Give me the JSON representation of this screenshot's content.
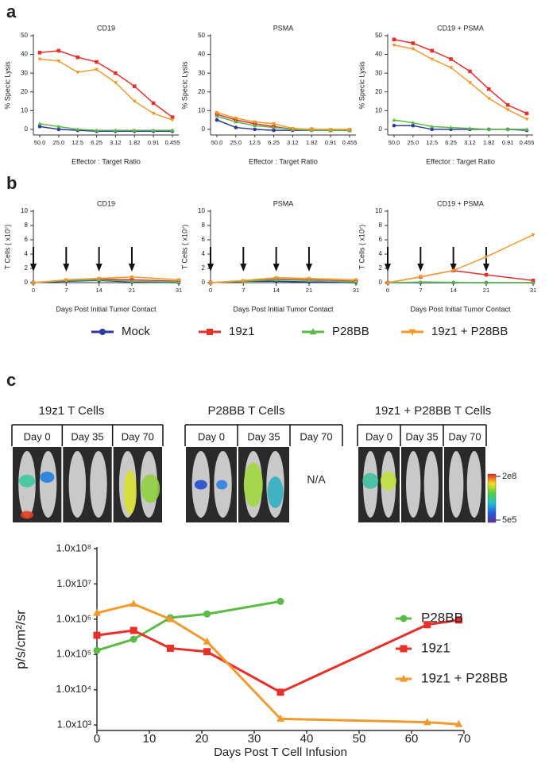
{
  "panel_labels": [
    "a",
    "b",
    "c"
  ],
  "chart_data": [
    {
      "type": "line",
      "title": "CD19",
      "ylabel": "% Specic Lysis",
      "xlabel": "Effector : Target Ratio",
      "categories": [
        "50.0",
        "25.0",
        "12.5",
        "6.25",
        "3.12",
        "1.82",
        "0.91",
        "0.455"
      ],
      "ylim": [
        -3,
        50
      ],
      "yticks": [
        0,
        10,
        20,
        30,
        40,
        50
      ],
      "series": [
        {
          "name": "Mock",
          "color": "#2e3a9e",
          "marker": "circle",
          "values": [
            1.5,
            0,
            -0.5,
            -1,
            -1,
            -1,
            -1,
            -1
          ]
        },
        {
          "name": "19z1",
          "color": "#e8302a",
          "marker": "square",
          "values": [
            41,
            42,
            38.5,
            36,
            30,
            23,
            14,
            6.5
          ]
        },
        {
          "name": "P28BB",
          "color": "#5cba47",
          "marker": "triangle",
          "values": [
            3,
            1.5,
            0,
            -0.5,
            -0.5,
            -0.5,
            -0.5,
            -0.5
          ]
        },
        {
          "name": "19z1 + P28BB",
          "color": "#f39a2e",
          "marker": "triangle-down",
          "values": [
            37.5,
            36.5,
            30.5,
            32,
            25,
            15,
            8.5,
            5
          ]
        }
      ]
    },
    {
      "type": "line",
      "title": "PSMA",
      "ylabel": "% Specic Lysis",
      "xlabel": "Effector : Target Ratio",
      "categories": [
        "50.0",
        "25.0",
        "12.5",
        "6.25",
        "3.12",
        "1.82",
        "0.91",
        "0.455"
      ],
      "ylim": [
        -3,
        50
      ],
      "yticks": [
        0,
        10,
        20,
        30,
        40,
        50
      ],
      "series": [
        {
          "name": "Mock",
          "color": "#2e3a9e",
          "marker": "circle",
          "values": [
            5,
            1,
            0,
            -0.5,
            -0.5,
            -0.5,
            -0.5,
            -0.5
          ]
        },
        {
          "name": "19z1",
          "color": "#e8302a",
          "marker": "square",
          "values": [
            8,
            5,
            3,
            1.5,
            0,
            0,
            -0.5,
            -0.5
          ]
        },
        {
          "name": "P28BB",
          "color": "#5cba47",
          "marker": "triangle",
          "values": [
            7,
            4,
            2,
            1,
            0,
            -0.5,
            -0.5,
            -0.5
          ]
        },
        {
          "name": "19z1 + P28BB",
          "color": "#f39a2e",
          "marker": "triangle-down",
          "values": [
            9,
            6,
            4,
            3,
            0.5,
            0,
            0,
            0
          ]
        }
      ]
    },
    {
      "type": "line",
      "title": "CD19 + PSMA",
      "ylabel": "% Specic Lysis",
      "xlabel": "Effector : Target Ratio",
      "categories": [
        "50.0",
        "25.0",
        "12.5",
        "6.25",
        "3.12",
        "1.82",
        "0.91",
        "0.455"
      ],
      "ylim": [
        -3,
        50
      ],
      "yticks": [
        0,
        10,
        20,
        30,
        40,
        50
      ],
      "series": [
        {
          "name": "Mock",
          "color": "#2e3a9e",
          "marker": "circle",
          "values": [
            2,
            2,
            0,
            0,
            0,
            0,
            0,
            -0.5
          ]
        },
        {
          "name": "19z1",
          "color": "#e8302a",
          "marker": "square",
          "values": [
            48,
            46,
            42,
            37.5,
            31,
            21.5,
            13,
            8.5
          ]
        },
        {
          "name": "P28BB",
          "color": "#5cba47",
          "marker": "triangle",
          "values": [
            5,
            3.5,
            1.5,
            1,
            0.5,
            0,
            0,
            0
          ]
        },
        {
          "name": "19z1 + P28BB",
          "color": "#f39a2e",
          "marker": "triangle-down",
          "values": [
            45,
            43,
            37.5,
            33,
            25,
            16.5,
            10.5,
            5.5
          ]
        }
      ]
    },
    {
      "type": "line",
      "title": "CD19",
      "ylabel": "T Cells ( x10⁷)",
      "xlabel": "Days Post Initial Tumor Contact",
      "x": [
        0,
        7,
        14,
        21,
        31
      ],
      "xlim": [
        0,
        31
      ],
      "xticks": [
        0,
        7,
        14,
        21,
        31
      ],
      "ylim": [
        0,
        10
      ],
      "yticks": [
        0,
        2,
        4,
        6,
        8,
        10
      ],
      "arrow_days": [
        0,
        7,
        14,
        21
      ],
      "series": [
        {
          "name": "Mock",
          "color": "#2e3a9e",
          "marker": "circle",
          "values": [
            0,
            0.2,
            0.3,
            0.1,
            0
          ]
        },
        {
          "name": "19z1",
          "color": "#e8302a",
          "marker": "square",
          "values": [
            0,
            0.3,
            0.5,
            0.4,
            0.2
          ]
        },
        {
          "name": "P28BB",
          "color": "#5cba47",
          "marker": "triangle",
          "values": [
            0,
            0.3,
            0.4,
            0.2,
            0.1
          ]
        },
        {
          "name": "19z1 + P28BB",
          "color": "#f39a2e",
          "marker": "triangle-down",
          "values": [
            0,
            0.4,
            0.6,
            0.8,
            0.4
          ]
        }
      ]
    },
    {
      "type": "line",
      "title": "PSMA",
      "ylabel": "T Cells ( x10⁷)",
      "xlabel": "Days Post Initial Tumor Contact",
      "x": [
        0,
        7,
        14,
        21,
        31
      ],
      "xlim": [
        0,
        31
      ],
      "xticks": [
        0,
        7,
        14,
        21,
        31
      ],
      "ylim": [
        0,
        10
      ],
      "yticks": [
        0,
        2,
        4,
        6,
        8,
        10
      ],
      "arrow_days": [
        0,
        7,
        14,
        21
      ],
      "legend": "bottom",
      "series": [
        {
          "name": "Mock",
          "color": "#2e3a9e",
          "marker": "circle",
          "values": [
            0,
            0.2,
            0.2,
            0.1,
            0
          ]
        },
        {
          "name": "19z1",
          "color": "#e8302a",
          "marker": "square",
          "values": [
            0,
            0.2,
            0.5,
            0.4,
            0.2
          ]
        },
        {
          "name": "P28BB",
          "color": "#5cba47",
          "marker": "triangle",
          "values": [
            0,
            0.2,
            0.4,
            0.3,
            0.1
          ]
        },
        {
          "name": "19z1 + P28BB",
          "color": "#f39a2e",
          "marker": "triangle-down",
          "values": [
            0,
            0.3,
            0.7,
            0.6,
            0.4
          ]
        }
      ]
    },
    {
      "type": "line",
      "title": "CD19 + PSMA",
      "ylabel": "T Cells ( x10⁷)",
      "xlabel": "Days Post Initial Tumor Contact",
      "x": [
        0,
        7,
        14,
        21,
        31
      ],
      "xlim": [
        0,
        31
      ],
      "xticks": [
        0,
        7,
        14,
        21,
        31
      ],
      "ylim": [
        0,
        10
      ],
      "yticks": [
        0,
        2,
        4,
        6,
        8,
        10
      ],
      "arrow_days": [
        0,
        7,
        14,
        21
      ],
      "series": [
        {
          "name": "Mock",
          "color": "#2e3a9e",
          "marker": "circle",
          "values": [
            0,
            0,
            0,
            0,
            0
          ]
        },
        {
          "name": "19z1",
          "color": "#e8302a",
          "marker": "square",
          "values": [
            0,
            0.8,
            1.7,
            1.1,
            0.3
          ]
        },
        {
          "name": "P28BB",
          "color": "#5cba47",
          "marker": "triangle",
          "values": [
            0,
            0.1,
            0.05,
            0,
            0
          ]
        },
        {
          "name": "19z1 + P28BB",
          "color": "#f39a2e",
          "marker": "triangle-down",
          "values": [
            0,
            0.8,
            1.7,
            3.6,
            6.7
          ]
        }
      ]
    },
    {
      "type": "line",
      "yscale": "log",
      "ylabel": "p/s/cm²/sr",
      "xlabel": "Days Post T Cell Infusion",
      "xlim": [
        0,
        70
      ],
      "xticks": [
        0,
        10,
        20,
        30,
        40,
        50,
        60,
        70
      ],
      "ylim": [
        700,
        100000000
      ],
      "yticks": [
        {
          "value": 1000,
          "label": "1.0x10³"
        },
        {
          "value": 10000,
          "label": "1.0x10⁴"
        },
        {
          "value": 100000,
          "label": "1.0x10⁵"
        },
        {
          "value": 1000000,
          "label": "1.0x10⁶"
        },
        {
          "value": 10000000,
          "label": "1.0x10⁷"
        },
        {
          "value": 100000000,
          "label": "1.0x10⁸"
        }
      ],
      "legend": "right",
      "series": [
        {
          "name": "P28BB",
          "color": "#5cba47",
          "marker": "circle",
          "x": [
            0,
            7,
            14,
            21,
            35
          ],
          "values": [
            130000,
            270000,
            1100000,
            1400000,
            3200000
          ]
        },
        {
          "name": "19z1",
          "color": "#e8302a",
          "marker": "square",
          "x": [
            0,
            7,
            14,
            21,
            35,
            63,
            69
          ],
          "values": [
            350000,
            480000,
            150000,
            120000,
            8500,
            700000,
            950000
          ]
        },
        {
          "name": "19z1 + P28BB",
          "color": "#f39a2e",
          "marker": "triangle",
          "x": [
            0,
            7,
            14,
            21,
            35,
            63,
            69
          ],
          "values": [
            1500000,
            2700000,
            1000000,
            230000,
            1500,
            1200,
            1050
          ]
        }
      ]
    }
  ],
  "imaging": {
    "groups": [
      {
        "title": "19z1 T Cells",
        "days": [
          "Day 0",
          "Day 35",
          "Day 70"
        ]
      },
      {
        "title": "P28BB T Cells",
        "days": [
          "Day 0",
          "Day 35",
          "Day 70"
        ]
      },
      {
        "title": "19z1 + P28BB T Cells",
        "days": [
          "Day 0",
          "Day 35",
          "Day 70"
        ]
      }
    ],
    "na": "N/A",
    "colorbar": {
      "max": "2e8",
      "min": "5e5"
    }
  }
}
